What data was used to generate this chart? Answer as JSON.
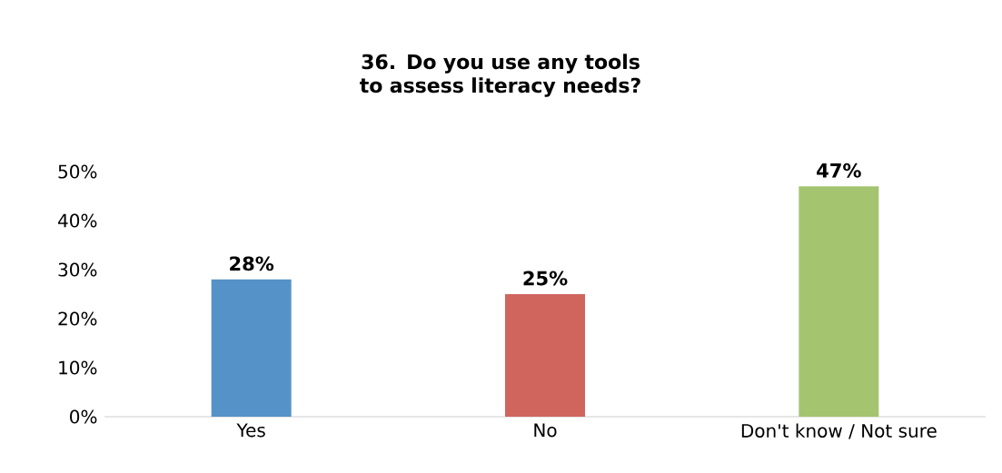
{
  "chart_data": {
    "type": "bar",
    "title": "36. Do you use any tools to assess literacy needs?",
    "categories": [
      "Yes",
      "No",
      "Don't know / Not sure"
    ],
    "values": [
      28,
      25,
      47
    ],
    "colors": [
      "#5592c8",
      "#d0655e",
      "#a5c46f"
    ],
    "value_labels": [
      "28%",
      "25%",
      "47%"
    ],
    "ylim": [
      0,
      50
    ],
    "yticks": [
      {
        "value": 0,
        "label": "0%"
      },
      {
        "value": 10,
        "label": "10%"
      },
      {
        "value": 20,
        "label": "20%"
      },
      {
        "value": 30,
        "label": "30%"
      },
      {
        "value": 40,
        "label": "40%"
      },
      {
        "value": 50,
        "label": "50%"
      }
    ]
  }
}
